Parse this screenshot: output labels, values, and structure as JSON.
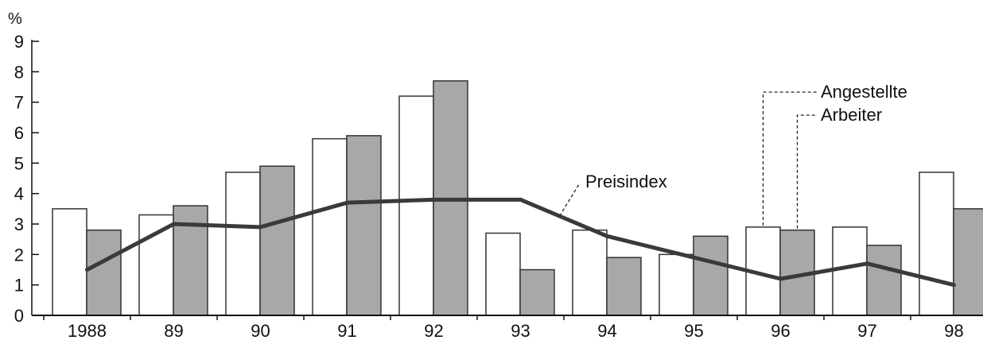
{
  "chart_data": {
    "type": "bar",
    "title": "",
    "ylabel": "%",
    "xlabel": "",
    "ylim": [
      0,
      9
    ],
    "yticks": [
      "0",
      "1",
      "2",
      "3",
      "4",
      "5",
      "6",
      "7",
      "8",
      "9"
    ],
    "categories": [
      "1988",
      "89",
      "90",
      "91",
      "92",
      "93",
      "94",
      "95",
      "96",
      "97",
      "98"
    ],
    "series": [
      {
        "name": "Angestellte",
        "kind": "bar",
        "color": "#ffffff",
        "values": [
          3.5,
          3.3,
          4.7,
          5.8,
          7.2,
          2.7,
          2.8,
          2.0,
          2.9,
          2.9,
          4.7
        ]
      },
      {
        "name": "Arbeiter",
        "kind": "bar",
        "color": "#a8a8a8",
        "values": [
          2.8,
          3.6,
          4.9,
          5.9,
          7.7,
          1.5,
          1.9,
          2.6,
          2.8,
          2.3,
          3.5
        ]
      },
      {
        "name": "Preisindex",
        "kind": "line",
        "color": "#3a3a3a",
        "values": [
          1.5,
          3.0,
          2.9,
          3.7,
          3.8,
          3.8,
          2.6,
          1.9,
          1.2,
          1.7,
          1.0
        ]
      }
    ],
    "grid": false,
    "legend": "top-right"
  }
}
